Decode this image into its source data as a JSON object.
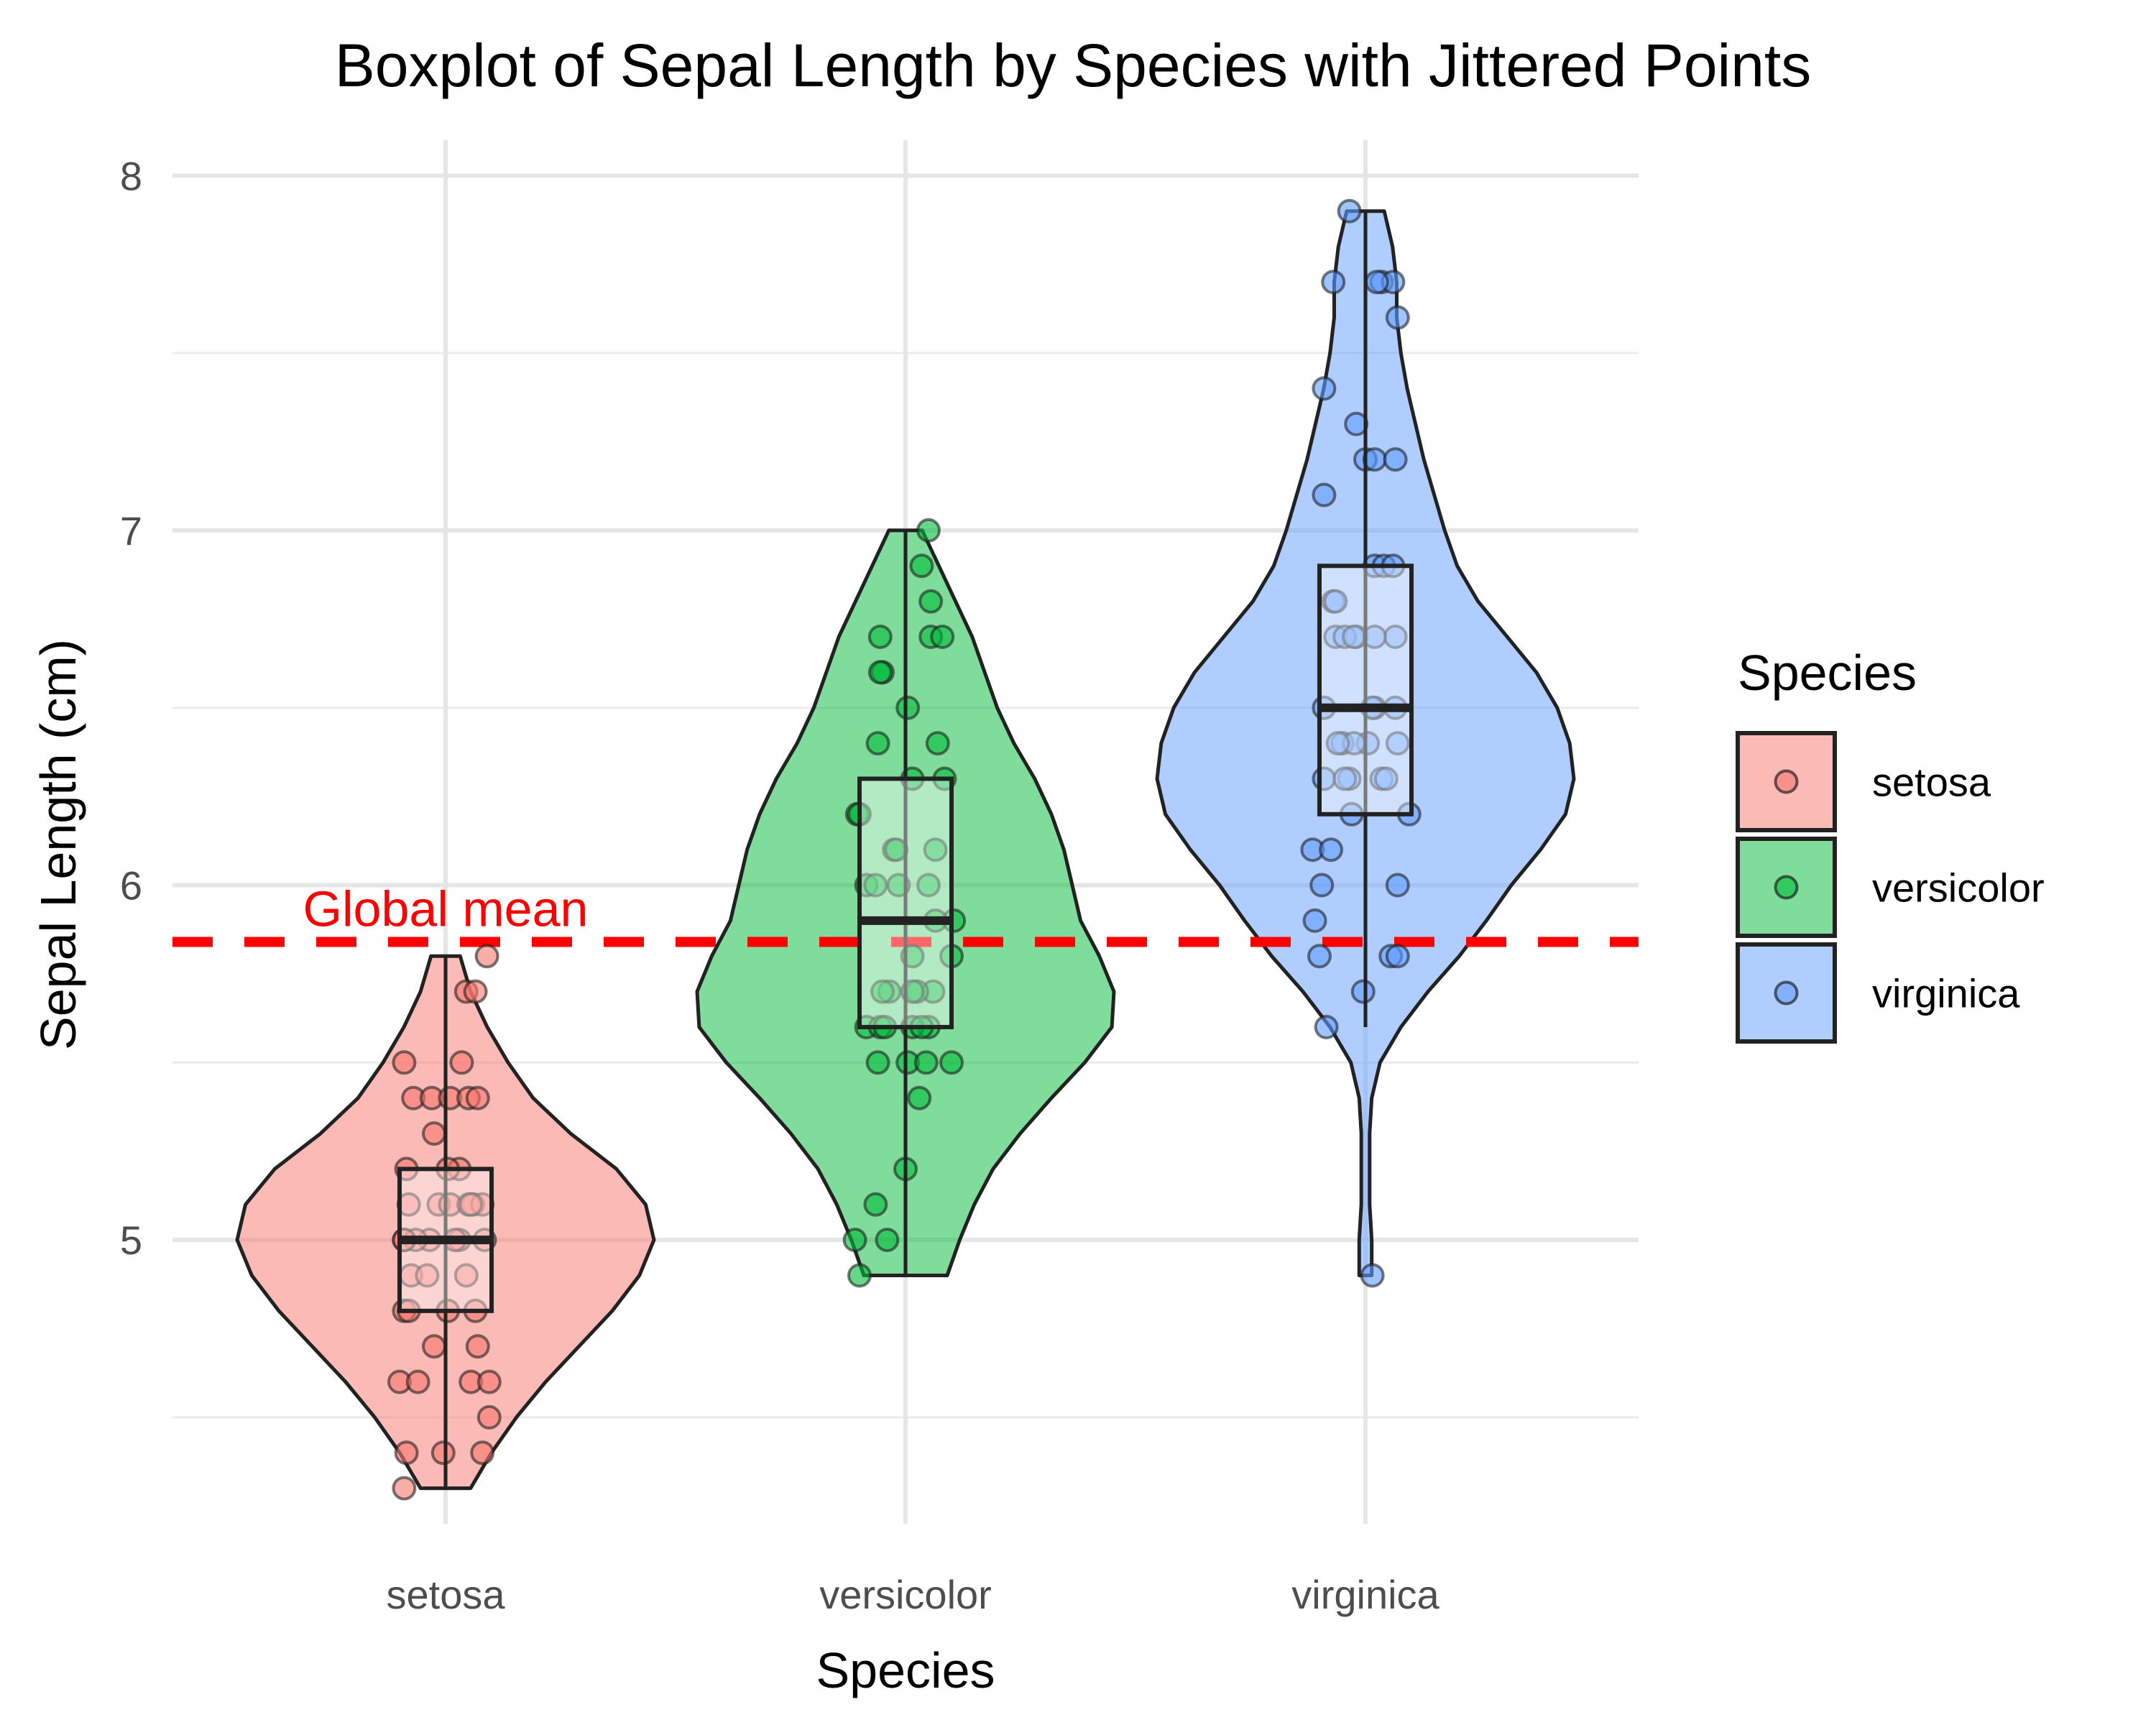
{
  "chart_data": {
    "type": "violin",
    "title": "Boxplot of Sepal Length by Species with Jittered Points",
    "xlabel": "Species",
    "ylabel": "Sepal Length (cm)",
    "categories": [
      "setosa",
      "versicolor",
      "virginica"
    ],
    "y_ticks": [
      5,
      6,
      7,
      8
    ],
    "ylim": [
      4.2,
      8.1
    ],
    "grid": true,
    "legend": {
      "title": "Species",
      "placement": "right",
      "entries": [
        "setosa",
        "versicolor",
        "virginica"
      ]
    },
    "colors": {
      "setosa": "#F8766D",
      "versicolor": "#00BA38",
      "virginica": "#619CFF",
      "reference_line": "#FF0000"
    },
    "reference_line": {
      "label": "Global mean",
      "y": 5.84
    },
    "series": [
      {
        "name": "setosa",
        "box": {
          "q1": 4.8,
          "median": 5.0,
          "q3": 5.2,
          "whisker_low": 4.3,
          "whisker_high": 5.8
        },
        "violin": [
          [
            4.3,
            0.12
          ],
          [
            4.4,
            0.22
          ],
          [
            4.5,
            0.34
          ],
          [
            4.6,
            0.48
          ],
          [
            4.7,
            0.64
          ],
          [
            4.8,
            0.8
          ],
          [
            4.9,
            0.93
          ],
          [
            5.0,
            1.0
          ],
          [
            5.1,
            0.96
          ],
          [
            5.2,
            0.82
          ],
          [
            5.3,
            0.6
          ],
          [
            5.4,
            0.42
          ],
          [
            5.5,
            0.3
          ],
          [
            5.6,
            0.2
          ],
          [
            5.7,
            0.12
          ],
          [
            5.8,
            0.07
          ]
        ],
        "points": [
          [
            -0.18,
            4.3
          ],
          [
            -0.17,
            4.4
          ],
          [
            -0.01,
            4.4
          ],
          [
            0.16,
            4.4
          ],
          [
            0.19,
            4.5
          ],
          [
            -0.2,
            4.6
          ],
          [
            -0.12,
            4.6
          ],
          [
            0.11,
            4.6
          ],
          [
            0.19,
            4.6
          ],
          [
            -0.05,
            4.7
          ],
          [
            0.14,
            4.7
          ],
          [
            -0.18,
            4.8
          ],
          [
            -0.16,
            4.8
          ],
          [
            0.01,
            4.8
          ],
          [
            0.13,
            4.8
          ],
          [
            -0.15,
            4.9
          ],
          [
            -0.08,
            4.9
          ],
          [
            0.09,
            4.9
          ],
          [
            -0.18,
            5.0
          ],
          [
            -0.07,
            5.0
          ],
          [
            0.06,
            5.0
          ],
          [
            0.17,
            5.0
          ],
          [
            -0.13,
            5.0
          ],
          [
            0.04,
            5.0
          ],
          [
            -0.18,
            5.0
          ],
          [
            0.12,
            5.1
          ],
          [
            -0.03,
            5.1
          ],
          [
            0.02,
            5.1
          ],
          [
            0.1,
            5.1
          ],
          [
            0.16,
            5.1
          ],
          [
            -0.16,
            5.1
          ],
          [
            0.11,
            5.1
          ],
          [
            -0.17,
            5.2
          ],
          [
            0.06,
            5.2
          ],
          [
            0.01,
            5.2
          ],
          [
            -0.05,
            5.3
          ],
          [
            -0.14,
            5.4
          ],
          [
            -0.06,
            5.4
          ],
          [
            0.02,
            5.4
          ],
          [
            0.1,
            5.4
          ],
          [
            0.14,
            5.4
          ],
          [
            0.07,
            5.5
          ],
          [
            -0.18,
            5.5
          ],
          [
            0.09,
            5.7
          ],
          [
            0.13,
            5.7
          ],
          [
            0.18,
            5.8
          ]
        ]
      },
      {
        "name": "versicolor",
        "box": {
          "q1": 5.6,
          "median": 5.9,
          "q3": 6.3,
          "whisker_low": 4.9,
          "whisker_high": 7.0
        },
        "violin": [
          [
            4.9,
            0.2
          ],
          [
            5.0,
            0.26
          ],
          [
            5.1,
            0.33
          ],
          [
            5.2,
            0.42
          ],
          [
            5.3,
            0.55
          ],
          [
            5.4,
            0.7
          ],
          [
            5.5,
            0.86
          ],
          [
            5.6,
            0.99
          ],
          [
            5.7,
            1.0
          ],
          [
            5.8,
            0.93
          ],
          [
            5.9,
            0.84
          ],
          [
            6.0,
            0.8
          ],
          [
            6.1,
            0.76
          ],
          [
            6.2,
            0.7
          ],
          [
            6.3,
            0.62
          ],
          [
            6.4,
            0.52
          ],
          [
            6.5,
            0.44
          ],
          [
            6.6,
            0.38
          ],
          [
            6.7,
            0.32
          ],
          [
            6.8,
            0.24
          ],
          [
            6.9,
            0.16
          ],
          [
            7.0,
            0.08
          ]
        ],
        "points": [
          [
            -0.2,
            4.9
          ],
          [
            -0.08,
            5.0
          ],
          [
            -0.22,
            5.0
          ],
          [
            -0.13,
            5.1
          ],
          [
            0.0,
            5.2
          ],
          [
            0.06,
            5.4
          ],
          [
            -0.12,
            5.5
          ],
          [
            0.01,
            5.5
          ],
          [
            0.09,
            5.5
          ],
          [
            0.2,
            5.5
          ],
          [
            -0.17,
            5.6
          ],
          [
            -0.11,
            5.6
          ],
          [
            0.1,
            5.6
          ],
          [
            0.03,
            5.6
          ],
          [
            -0.09,
            5.6
          ],
          [
            0.07,
            5.6
          ],
          [
            -0.07,
            5.7
          ],
          [
            0.12,
            5.7
          ],
          [
            -0.1,
            5.7
          ],
          [
            0.05,
            5.7
          ],
          [
            0.03,
            5.7
          ],
          [
            0.2,
            5.8
          ],
          [
            0.03,
            5.8
          ],
          [
            0.21,
            5.9
          ],
          [
            0.13,
            5.9
          ],
          [
            -0.17,
            6.0
          ],
          [
            -0.03,
            6.0
          ],
          [
            0.1,
            6.0
          ],
          [
            -0.13,
            6.0
          ],
          [
            -0.05,
            6.1
          ],
          [
            -0.04,
            6.1
          ],
          [
            0.13,
            6.1
          ],
          [
            -0.21,
            6.2
          ],
          [
            -0.2,
            6.2
          ],
          [
            0.03,
            6.3
          ],
          [
            0.17,
            6.3
          ],
          [
            0.14,
            6.4
          ],
          [
            -0.12,
            6.4
          ],
          [
            0.01,
            6.5
          ],
          [
            -0.1,
            6.6
          ],
          [
            -0.11,
            6.6
          ],
          [
            -0.11,
            6.7
          ],
          [
            0.11,
            6.7
          ],
          [
            0.16,
            6.7
          ],
          [
            0.11,
            6.8
          ],
          [
            0.07,
            6.9
          ],
          [
            0.1,
            7.0
          ]
        ]
      },
      {
        "name": "virginica",
        "box": {
          "q1": 6.2,
          "median": 6.5,
          "q3": 6.9,
          "whisker_low": 5.6,
          "whisker_high": 7.9
        },
        "violin": [
          [
            4.9,
            0.03
          ],
          [
            5.0,
            0.03
          ],
          [
            5.1,
            0.02
          ],
          [
            5.2,
            0.02
          ],
          [
            5.3,
            0.02
          ],
          [
            5.4,
            0.03
          ],
          [
            5.5,
            0.07
          ],
          [
            5.6,
            0.17
          ],
          [
            5.7,
            0.3
          ],
          [
            5.8,
            0.45
          ],
          [
            5.9,
            0.58
          ],
          [
            6.0,
            0.7
          ],
          [
            6.1,
            0.84
          ],
          [
            6.2,
            0.96
          ],
          [
            6.3,
            1.0
          ],
          [
            6.4,
            0.98
          ],
          [
            6.5,
            0.92
          ],
          [
            6.6,
            0.82
          ],
          [
            6.7,
            0.68
          ],
          [
            6.8,
            0.54
          ],
          [
            6.9,
            0.44
          ],
          [
            7.0,
            0.38
          ],
          [
            7.1,
            0.33
          ],
          [
            7.2,
            0.28
          ],
          [
            7.3,
            0.24
          ],
          [
            7.4,
            0.2
          ],
          [
            7.5,
            0.17
          ],
          [
            7.6,
            0.15
          ],
          [
            7.7,
            0.15
          ],
          [
            7.8,
            0.13
          ],
          [
            7.9,
            0.09
          ]
        ],
        "points": [
          [
            0.03,
            4.9
          ],
          [
            -0.17,
            5.6
          ],
          [
            -0.01,
            5.7
          ],
          [
            -0.2,
            5.8
          ],
          [
            0.11,
            5.8
          ],
          [
            0.14,
            5.8
          ],
          [
            -0.22,
            5.9
          ],
          [
            0.14,
            6.0
          ],
          [
            -0.19,
            6.0
          ],
          [
            -0.23,
            6.1
          ],
          [
            0.19,
            6.2
          ],
          [
            -0.15,
            6.1
          ],
          [
            -0.06,
            6.2
          ],
          [
            -0.18,
            6.3
          ],
          [
            0.07,
            6.3
          ],
          [
            0.09,
            6.3
          ],
          [
            -0.07,
            6.3
          ],
          [
            -0.09,
            6.3
          ],
          [
            0.01,
            6.4
          ],
          [
            -0.1,
            6.4
          ],
          [
            -0.05,
            6.4
          ],
          [
            0.14,
            6.4
          ],
          [
            -0.12,
            6.4
          ],
          [
            0.04,
            6.5
          ],
          [
            0.03,
            6.5
          ],
          [
            -0.18,
            6.5
          ],
          [
            0.13,
            6.5
          ],
          [
            0.13,
            6.7
          ],
          [
            -0.13,
            6.7
          ],
          [
            -0.04,
            6.7
          ],
          [
            -0.09,
            6.7
          ],
          [
            -0.05,
            6.7
          ],
          [
            0.04,
            6.7
          ],
          [
            -0.14,
            6.8
          ],
          [
            -0.13,
            6.8
          ],
          [
            0.04,
            6.9
          ],
          [
            0.08,
            6.9
          ],
          [
            0.12,
            6.9
          ],
          [
            -0.18,
            7.1
          ],
          [
            0.0,
            7.2
          ],
          [
            0.04,
            7.2
          ],
          [
            0.13,
            7.2
          ],
          [
            -0.04,
            7.3
          ],
          [
            -0.18,
            7.4
          ],
          [
            0.14,
            7.6
          ],
          [
            -0.14,
            7.7
          ],
          [
            0.07,
            7.7
          ],
          [
            0.12,
            7.7
          ],
          [
            0.05,
            7.7
          ],
          [
            -0.07,
            7.9
          ]
        ]
      }
    ]
  }
}
